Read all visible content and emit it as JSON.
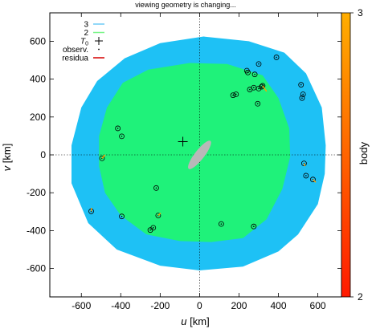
{
  "chart_data": {
    "type": "scatter",
    "title": "viewing geometry is changing...",
    "xlabel": "u [km]",
    "ylabel": "v [km]",
    "xlim": [
      -760,
      720
    ],
    "ylim": [
      -750,
      750
    ],
    "xticks": [
      -600,
      -400,
      -200,
      0,
      200,
      400,
      600
    ],
    "yticks": [
      -600,
      -400,
      -200,
      0,
      200,
      400,
      600
    ],
    "grid": false,
    "zero_lines": true,
    "legend_position": "top-left",
    "legend": [
      {
        "label": "3",
        "symbol": "line",
        "color": "#6ecbf5"
      },
      {
        "label": "2",
        "symbol": "line",
        "color": "#7cf58a"
      },
      {
        "label": "T0",
        "symbol": "plus",
        "color": "#000000"
      },
      {
        "label": "observ.",
        "symbol": "dot",
        "color": "#000000"
      },
      {
        "label": "residua",
        "symbol": "line",
        "color": "#d60000"
      }
    ],
    "colorbar": {
      "label": "body",
      "range": [
        2,
        3
      ],
      "ticks": [
        2,
        3
      ],
      "color_low": "#ff1a00",
      "color_high": "#ffae00"
    },
    "regions": [
      {
        "name": "3",
        "color": "#1ec1f5",
        "outline": [
          [
            -565,
            -360
          ],
          [
            -420,
            -500
          ],
          [
            -200,
            -585
          ],
          [
            0,
            -610
          ],
          [
            220,
            -590
          ],
          [
            400,
            -510
          ],
          [
            500,
            -420
          ],
          [
            600,
            -260
          ],
          [
            635,
            -100
          ],
          [
            640,
            50
          ],
          [
            620,
            250
          ],
          [
            540,
            430
          ],
          [
            430,
            540
          ],
          [
            250,
            600
          ],
          [
            20,
            625
          ],
          [
            -200,
            590
          ],
          [
            -380,
            510
          ],
          [
            -520,
            390
          ],
          [
            -600,
            250
          ],
          [
            -650,
            50
          ],
          [
            -650,
            -150
          ]
        ]
      },
      {
        "name": "2",
        "color": "#1ff27a",
        "outline": [
          [
            -480,
            -200
          ],
          [
            -400,
            -320
          ],
          [
            -270,
            -420
          ],
          [
            -100,
            -455
          ],
          [
            60,
            -460
          ],
          [
            220,
            -440
          ],
          [
            340,
            -340
          ],
          [
            420,
            -180
          ],
          [
            460,
            -10
          ],
          [
            455,
            140
          ],
          [
            400,
            300
          ],
          [
            320,
            420
          ],
          [
            140,
            480
          ],
          [
            -50,
            485
          ],
          [
            -260,
            450
          ],
          [
            -390,
            380
          ],
          [
            -470,
            250
          ],
          [
            -510,
            100
          ],
          [
            -510,
            -60
          ]
        ]
      }
    ],
    "T0": {
      "u": -85,
      "v": 70
    },
    "body_shape": {
      "u": 0,
      "v": 0,
      "length": 180,
      "width": 48,
      "angle_deg": 52,
      "color": "#b8b8b8"
    },
    "observations": [
      {
        "u": -415,
        "v": 140
      },
      {
        "u": -395,
        "v": 98
      },
      {
        "u": -495,
        "v": -18
      },
      {
        "u": -550,
        "v": -298
      },
      {
        "u": -395,
        "v": -325
      },
      {
        "u": -250,
        "v": -397
      },
      {
        "u": -235,
        "v": -385
      },
      {
        "u": -220,
        "v": -175
      },
      {
        "u": -210,
        "v": -320
      },
      {
        "u": 110,
        "v": -365
      },
      {
        "u": 275,
        "v": -378
      },
      {
        "u": 240,
        "v": 445
      },
      {
        "u": 280,
        "v": 425
      },
      {
        "u": 300,
        "v": 480
      },
      {
        "u": 390,
        "v": 515
      },
      {
        "u": 255,
        "v": 345
      },
      {
        "u": 275,
        "v": 355
      },
      {
        "u": 300,
        "v": 350
      },
      {
        "u": 320,
        "v": 365
      },
      {
        "u": 315,
        "v": 360
      },
      {
        "u": 185,
        "v": 320
      },
      {
        "u": 170,
        "v": 315
      },
      {
        "u": 295,
        "v": 270
      },
      {
        "u": 515,
        "v": 370
      },
      {
        "u": 525,
        "v": 320
      },
      {
        "u": 520,
        "v": 300
      },
      {
        "u": 530,
        "v": -45
      },
      {
        "u": 540,
        "v": -110
      },
      {
        "u": 575,
        "v": -130
      },
      {
        "u": 245,
        "v": 435
      }
    ],
    "residuals": [
      {
        "u0": -550,
        "v0": -298,
        "u1": -548,
        "v1": -280
      },
      {
        "u0": -495,
        "v0": -18,
        "u1": -480,
        "v1": 0
      },
      {
        "u0": -210,
        "v0": -320,
        "u1": -198,
        "v1": -308
      },
      {
        "u0": 320,
        "v0": 365,
        "u1": 340,
        "v1": 335
      },
      {
        "u0": 575,
        "v0": -130,
        "u1": 590,
        "v1": -145
      },
      {
        "u0": 530,
        "v0": -45,
        "u1": 535,
        "v1": -60
      }
    ]
  }
}
